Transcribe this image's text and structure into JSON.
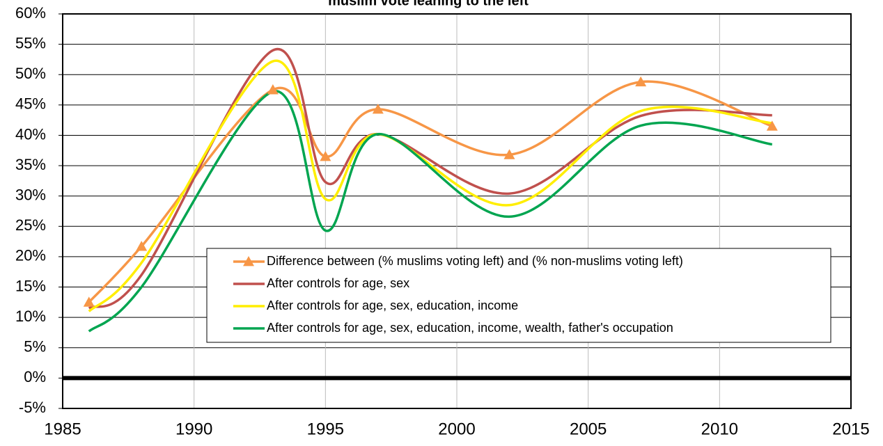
{
  "chart_data": {
    "type": "line",
    "title": "muslim vote leaning to the left",
    "x": [
      1986,
      1988,
      1993,
      1995,
      1997,
      2002,
      2007,
      2012
    ],
    "series": [
      {
        "name": "Difference between (% muslims voting left) and (% non-muslims voting left)",
        "color": "#f79646",
        "marker": "triangle",
        "values": [
          12.5,
          21.7,
          47.5,
          36.5,
          44.3,
          36.8,
          48.8,
          41.5
        ]
      },
      {
        "name": "After controls for age, sex",
        "color": "#c0504d",
        "values": [
          11.5,
          17,
          54,
          32.3,
          40.2,
          30.4,
          43.2,
          43.3
        ]
      },
      {
        "name": "After controls for age, sex, education, income",
        "color": "#ffee00",
        "values": [
          11,
          19,
          52.2,
          29.5,
          40.2,
          28.5,
          44,
          42
        ]
      },
      {
        "name": "After controls for age, sex, education, income, wealth, father's occupation",
        "color": "#00a550",
        "values": [
          7.7,
          15,
          47.2,
          24.3,
          40.2,
          26.6,
          41.6,
          38.5
        ]
      }
    ],
    "xlim": [
      1985,
      2015
    ],
    "xticks": [
      1985,
      1990,
      1995,
      2000,
      2005,
      2010,
      2015
    ],
    "ylim": [
      -5,
      60
    ],
    "yticks": [
      {
        "value": -5,
        "label": "-5%"
      },
      {
        "value": 0,
        "label": "0%"
      },
      {
        "value": 5,
        "label": "5%"
      },
      {
        "value": 10,
        "label": "10%"
      },
      {
        "value": 15,
        "label": "15%"
      },
      {
        "value": 20,
        "label": "20%"
      },
      {
        "value": 25,
        "label": "25%"
      },
      {
        "value": 30,
        "label": "30%"
      },
      {
        "value": 35,
        "label": "35%"
      },
      {
        "value": 40,
        "label": "40%"
      },
      {
        "value": 45,
        "label": "45%"
      },
      {
        "value": 50,
        "label": "50%"
      },
      {
        "value": 55,
        "label": "55%"
      },
      {
        "value": 60,
        "label": "60%"
      }
    ],
    "grid": true,
    "smooth": true
  }
}
